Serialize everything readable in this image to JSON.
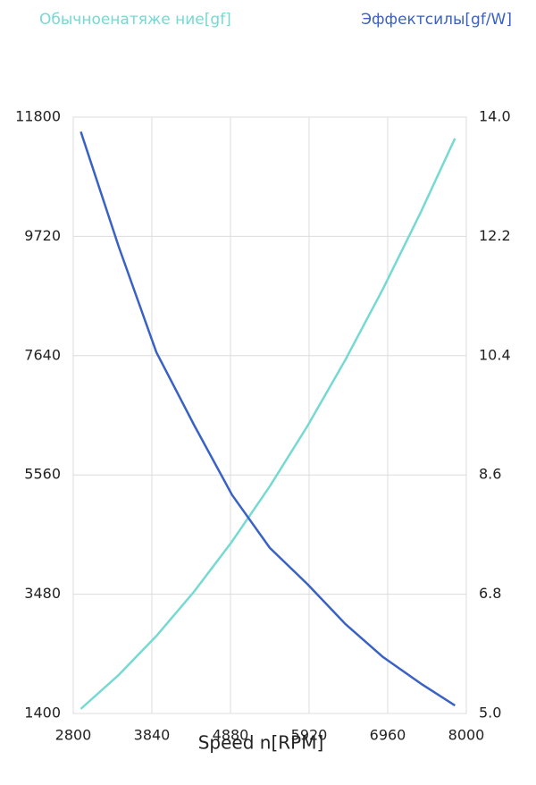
{
  "chart_data": {
    "type": "line",
    "x": [
      2900,
      3400,
      3900,
      4400,
      4900,
      5400,
      5900,
      6400,
      6900,
      7400,
      7850
    ],
    "series": [
      {
        "name": "Обычноенатяже ние[gf]",
        "color": "#76d9d2",
        "values": [
          1480,
          2070,
          2752,
          3528,
          4398,
          5361,
          6417,
          7568,
          8811,
          10148,
          11430
        ]
      },
      {
        "name": "Эффектсилы[gf/W]",
        "color": "#3a62c4",
        "axis": "y2",
        "values": [
          13.78,
          12.05,
          10.45,
          9.35,
          8.3,
          7.5,
          6.95,
          6.35,
          5.85,
          5.45,
          5.12
        ]
      }
    ],
    "x_label": "Speed n[RPM]",
    "xlim": [
      2800,
      8000
    ],
    "xticks": [
      2800,
      3840,
      4880,
      5920,
      6960,
      8000
    ],
    "ylim": [
      1400,
      11800
    ],
    "yticks": [
      1400,
      3480,
      5560,
      7640,
      9720,
      11800
    ],
    "y2lim": [
      5,
      14
    ],
    "y2ticks": [
      {
        "value": 5,
        "label": "5.0"
      },
      {
        "value": 6.8,
        "label": "6.8"
      },
      {
        "value": 8.6,
        "label": "8.6"
      },
      {
        "value": 10.4,
        "label": "10.4"
      },
      {
        "value": 12.2,
        "label": "12.2"
      },
      {
        "value": 14,
        "label": "14.0"
      }
    ],
    "grid": true
  }
}
